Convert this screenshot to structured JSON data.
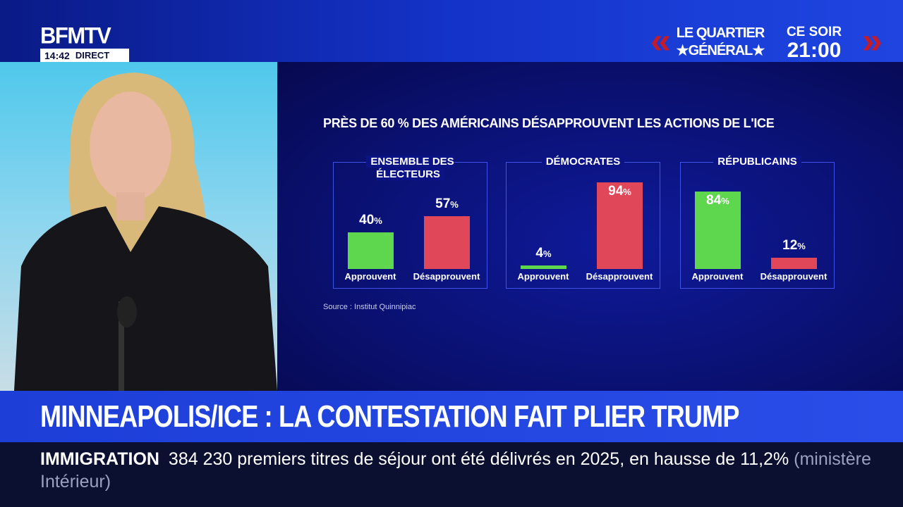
{
  "channel": {
    "logo": "BFMTV",
    "time": "14:42",
    "live": "DIRECT"
  },
  "promo": {
    "show_line1": "LE QUARTIER",
    "show_line2": "★GÉNÉRAL★",
    "when_line1": "CE SOIR",
    "when_line2": "21:00",
    "accent": "#c21b2c"
  },
  "colors": {
    "approve": "#5ed74f",
    "disapprove": "#e0485a",
    "panel": "#0a1070"
  },
  "chart_data": {
    "type": "bar",
    "title": "PRÈS DE 60 % DES AMÉRICAINS DÉSAPPROUVENT LES ACTIONS DE L'ICE",
    "categories": [
      "Approuvent",
      "Désapprouvent"
    ],
    "unit": "%",
    "ylim": [
      0,
      100
    ],
    "groups": [
      {
        "name": "ENSEMBLE DES ÉLECTEURS",
        "values": [
          40,
          57
        ]
      },
      {
        "name": "DÉMOCRATES",
        "values": [
          4,
          94
        ]
      },
      {
        "name": "RÉPUBLICAINS",
        "values": [
          84,
          12
        ]
      }
    ],
    "source": "Source : Institut Quinnipiac"
  },
  "headline": "MINNEAPOLIS/ICE : LA CONTESTATION FAIT PLIER TRUMP",
  "ticker": {
    "keyword": "IMMIGRATION",
    "text": "384 230 premiers titres de séjour ont été délivrés en 2025, en hausse de 11,2%",
    "source": "(ministère Intérieur)"
  }
}
